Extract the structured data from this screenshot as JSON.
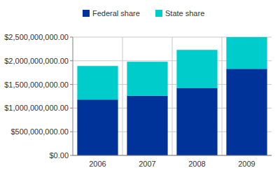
{
  "chart_data": {
    "type": "bar",
    "stacked": true,
    "grid": true,
    "legend": "top",
    "categories": [
      "2006",
      "2007",
      "2008",
      "2009"
    ],
    "series": [
      {
        "name": "Federal share",
        "color": "#003399",
        "values": [
          1180000000,
          1260000000,
          1420000000,
          1830000000
        ]
      },
      {
        "name": "State share",
        "color": "#00cccc",
        "values": [
          710000000,
          720000000,
          810000000,
          670000000
        ]
      }
    ],
    "ylim": [
      0,
      2500000000
    ],
    "yticks": [
      {
        "value": 0,
        "label": "$0.00"
      },
      {
        "value": 500000000,
        "label": "$500,000,000.00"
      },
      {
        "value": 1000000000,
        "label": "$1,000,000,000.00"
      },
      {
        "value": 1500000000,
        "label": "$1,500,000,000.00"
      },
      {
        "value": 2000000000,
        "label": "$2,000,000,000.00"
      },
      {
        "value": 2500000000,
        "label": "$2,500,000,000.00"
      }
    ]
  }
}
